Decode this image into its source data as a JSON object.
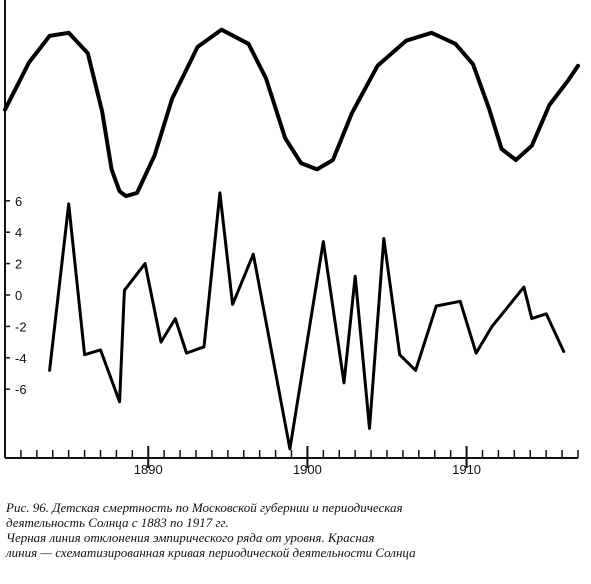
{
  "chart_data": {
    "type": "line",
    "x_axis": {
      "min": 1881,
      "max": 1917,
      "tick_labels": [
        "1890",
        "1900",
        "1910"
      ],
      "tick_values": [
        1890,
        1900,
        1910
      ]
    },
    "y_axis": {
      "min": -10.5,
      "max": 6.5,
      "tick_labels": [
        "6",
        "4",
        "2",
        "0",
        "-2",
        "-4",
        "-6"
      ],
      "tick_values": [
        6,
        4,
        2,
        0,
        -2,
        -4,
        -6
      ]
    },
    "series": [
      {
        "color": "#000000",
        "points": [
          [
            1883.8,
            -4.8
          ],
          [
            1885,
            5.8
          ],
          [
            1886,
            -3.8
          ],
          [
            1887,
            -3.5
          ],
          [
            1888.2,
            -6.8
          ],
          [
            1888.5,
            0.3
          ],
          [
            1889.8,
            2.0
          ],
          [
            1890.8,
            -3.0
          ],
          [
            1891.7,
            -1.5
          ],
          [
            1892.4,
            -3.7
          ],
          [
            1893.5,
            -3.3
          ],
          [
            1894.5,
            6.5
          ],
          [
            1895.3,
            -0.6
          ],
          [
            1896.6,
            2.6
          ],
          [
            1898.9,
            -9.8
          ],
          [
            1901,
            3.4
          ],
          [
            1902.3,
            -5.6
          ],
          [
            1903,
            1.2
          ],
          [
            1903.9,
            -8.5
          ],
          [
            1904.8,
            3.6
          ],
          [
            1905.8,
            -3.8
          ],
          [
            1906.8,
            -4.8
          ],
          [
            1908.1,
            -0.7
          ],
          [
            1909.6,
            -0.4
          ],
          [
            1910.6,
            -3.7
          ],
          [
            1911.6,
            -2.0
          ],
          [
            1913.6,
            0.5
          ],
          [
            1914.1,
            -1.5
          ],
          [
            1915,
            -1.2
          ],
          [
            1916.1,
            -3.6
          ]
        ]
      },
      {
        "color": "#000000",
        "points": [
          [
            1881,
            11.8
          ],
          [
            1882.5,
            14.8
          ],
          [
            1883.8,
            16.5
          ],
          [
            1885,
            16.7
          ],
          [
            1886.2,
            15.4
          ],
          [
            1887.1,
            11.7
          ],
          [
            1887.7,
            8.0
          ],
          [
            1888.2,
            6.6
          ],
          [
            1888.6,
            6.3
          ],
          [
            1889.3,
            6.5
          ],
          [
            1890.4,
            8.9
          ],
          [
            1891.5,
            12.5
          ],
          [
            1893.1,
            15.8
          ],
          [
            1894.6,
            16.9
          ],
          [
            1896.3,
            16.0
          ],
          [
            1897.4,
            13.8
          ],
          [
            1898.6,
            10.0
          ],
          [
            1899.6,
            8.4
          ],
          [
            1900.6,
            8.0
          ],
          [
            1901.6,
            8.6
          ],
          [
            1902.8,
            11.6
          ],
          [
            1904.4,
            14.6
          ],
          [
            1906.2,
            16.2
          ],
          [
            1907.8,
            16.7
          ],
          [
            1909.3,
            16.0
          ],
          [
            1910.4,
            14.7
          ],
          [
            1911.4,
            11.9
          ],
          [
            1912.2,
            9.3
          ],
          [
            1913.1,
            8.6
          ],
          [
            1914.1,
            9.5
          ],
          [
            1915.2,
            12.1
          ],
          [
            1916.4,
            13.7
          ],
          [
            1917,
            14.6
          ]
        ]
      }
    ]
  },
  "caption": {
    "line1": "Рис. 96. Детская смертность по Московской губернии и периодическая",
    "line2": "деятельность Солнца с 1883 по 1917 гг.",
    "line3": "Черная линия   отклонения эмпирического ряда от уровня. Красная",
    "line4": "линия — схематизированная кривая периодической деятельности Солнца"
  }
}
